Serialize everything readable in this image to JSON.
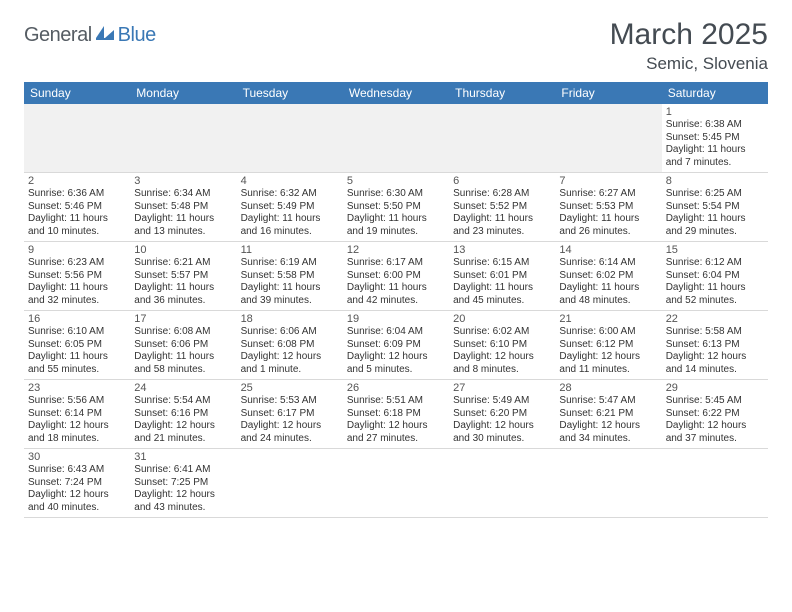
{
  "brand": {
    "text1": "General",
    "text2": "Blue"
  },
  "title": "March 2025",
  "location": "Semic, Slovenia",
  "colors": {
    "header_bg": "#3a78b5",
    "header_fg": "#ffffff",
    "row_border": "#3a78b5",
    "text_primary": "#444b52",
    "text_body": "#333333",
    "spacer_bg": "#f1f1f1"
  },
  "day_headers": [
    "Sunday",
    "Monday",
    "Tuesday",
    "Wednesday",
    "Thursday",
    "Friday",
    "Saturday"
  ],
  "weeks": [
    [
      null,
      null,
      null,
      null,
      null,
      null,
      {
        "n": "1",
        "sr": "Sunrise: 6:38 AM",
        "ss": "Sunset: 5:45 PM",
        "dl1": "Daylight: 11 hours",
        "dl2": "and 7 minutes."
      }
    ],
    [
      {
        "n": "2",
        "sr": "Sunrise: 6:36 AM",
        "ss": "Sunset: 5:46 PM",
        "dl1": "Daylight: 11 hours",
        "dl2": "and 10 minutes."
      },
      {
        "n": "3",
        "sr": "Sunrise: 6:34 AM",
        "ss": "Sunset: 5:48 PM",
        "dl1": "Daylight: 11 hours",
        "dl2": "and 13 minutes."
      },
      {
        "n": "4",
        "sr": "Sunrise: 6:32 AM",
        "ss": "Sunset: 5:49 PM",
        "dl1": "Daylight: 11 hours",
        "dl2": "and 16 minutes."
      },
      {
        "n": "5",
        "sr": "Sunrise: 6:30 AM",
        "ss": "Sunset: 5:50 PM",
        "dl1": "Daylight: 11 hours",
        "dl2": "and 19 minutes."
      },
      {
        "n": "6",
        "sr": "Sunrise: 6:28 AM",
        "ss": "Sunset: 5:52 PM",
        "dl1": "Daylight: 11 hours",
        "dl2": "and 23 minutes."
      },
      {
        "n": "7",
        "sr": "Sunrise: 6:27 AM",
        "ss": "Sunset: 5:53 PM",
        "dl1": "Daylight: 11 hours",
        "dl2": "and 26 minutes."
      },
      {
        "n": "8",
        "sr": "Sunrise: 6:25 AM",
        "ss": "Sunset: 5:54 PM",
        "dl1": "Daylight: 11 hours",
        "dl2": "and 29 minutes."
      }
    ],
    [
      {
        "n": "9",
        "sr": "Sunrise: 6:23 AM",
        "ss": "Sunset: 5:56 PM",
        "dl1": "Daylight: 11 hours",
        "dl2": "and 32 minutes."
      },
      {
        "n": "10",
        "sr": "Sunrise: 6:21 AM",
        "ss": "Sunset: 5:57 PM",
        "dl1": "Daylight: 11 hours",
        "dl2": "and 36 minutes."
      },
      {
        "n": "11",
        "sr": "Sunrise: 6:19 AM",
        "ss": "Sunset: 5:58 PM",
        "dl1": "Daylight: 11 hours",
        "dl2": "and 39 minutes."
      },
      {
        "n": "12",
        "sr": "Sunrise: 6:17 AM",
        "ss": "Sunset: 6:00 PM",
        "dl1": "Daylight: 11 hours",
        "dl2": "and 42 minutes."
      },
      {
        "n": "13",
        "sr": "Sunrise: 6:15 AM",
        "ss": "Sunset: 6:01 PM",
        "dl1": "Daylight: 11 hours",
        "dl2": "and 45 minutes."
      },
      {
        "n": "14",
        "sr": "Sunrise: 6:14 AM",
        "ss": "Sunset: 6:02 PM",
        "dl1": "Daylight: 11 hours",
        "dl2": "and 48 minutes."
      },
      {
        "n": "15",
        "sr": "Sunrise: 6:12 AM",
        "ss": "Sunset: 6:04 PM",
        "dl1": "Daylight: 11 hours",
        "dl2": "and 52 minutes."
      }
    ],
    [
      {
        "n": "16",
        "sr": "Sunrise: 6:10 AM",
        "ss": "Sunset: 6:05 PM",
        "dl1": "Daylight: 11 hours",
        "dl2": "and 55 minutes."
      },
      {
        "n": "17",
        "sr": "Sunrise: 6:08 AM",
        "ss": "Sunset: 6:06 PM",
        "dl1": "Daylight: 11 hours",
        "dl2": "and 58 minutes."
      },
      {
        "n": "18",
        "sr": "Sunrise: 6:06 AM",
        "ss": "Sunset: 6:08 PM",
        "dl1": "Daylight: 12 hours",
        "dl2": "and 1 minute."
      },
      {
        "n": "19",
        "sr": "Sunrise: 6:04 AM",
        "ss": "Sunset: 6:09 PM",
        "dl1": "Daylight: 12 hours",
        "dl2": "and 5 minutes."
      },
      {
        "n": "20",
        "sr": "Sunrise: 6:02 AM",
        "ss": "Sunset: 6:10 PM",
        "dl1": "Daylight: 12 hours",
        "dl2": "and 8 minutes."
      },
      {
        "n": "21",
        "sr": "Sunrise: 6:00 AM",
        "ss": "Sunset: 6:12 PM",
        "dl1": "Daylight: 12 hours",
        "dl2": "and 11 minutes."
      },
      {
        "n": "22",
        "sr": "Sunrise: 5:58 AM",
        "ss": "Sunset: 6:13 PM",
        "dl1": "Daylight: 12 hours",
        "dl2": "and 14 minutes."
      }
    ],
    [
      {
        "n": "23",
        "sr": "Sunrise: 5:56 AM",
        "ss": "Sunset: 6:14 PM",
        "dl1": "Daylight: 12 hours",
        "dl2": "and 18 minutes."
      },
      {
        "n": "24",
        "sr": "Sunrise: 5:54 AM",
        "ss": "Sunset: 6:16 PM",
        "dl1": "Daylight: 12 hours",
        "dl2": "and 21 minutes."
      },
      {
        "n": "25",
        "sr": "Sunrise: 5:53 AM",
        "ss": "Sunset: 6:17 PM",
        "dl1": "Daylight: 12 hours",
        "dl2": "and 24 minutes."
      },
      {
        "n": "26",
        "sr": "Sunrise: 5:51 AM",
        "ss": "Sunset: 6:18 PM",
        "dl1": "Daylight: 12 hours",
        "dl2": "and 27 minutes."
      },
      {
        "n": "27",
        "sr": "Sunrise: 5:49 AM",
        "ss": "Sunset: 6:20 PM",
        "dl1": "Daylight: 12 hours",
        "dl2": "and 30 minutes."
      },
      {
        "n": "28",
        "sr": "Sunrise: 5:47 AM",
        "ss": "Sunset: 6:21 PM",
        "dl1": "Daylight: 12 hours",
        "dl2": "and 34 minutes."
      },
      {
        "n": "29",
        "sr": "Sunrise: 5:45 AM",
        "ss": "Sunset: 6:22 PM",
        "dl1": "Daylight: 12 hours",
        "dl2": "and 37 minutes."
      }
    ],
    [
      {
        "n": "30",
        "sr": "Sunrise: 6:43 AM",
        "ss": "Sunset: 7:24 PM",
        "dl1": "Daylight: 12 hours",
        "dl2": "and 40 minutes."
      },
      {
        "n": "31",
        "sr": "Sunrise: 6:41 AM",
        "ss": "Sunset: 7:25 PM",
        "dl1": "Daylight: 12 hours",
        "dl2": "and 43 minutes."
      },
      null,
      null,
      null,
      null,
      null
    ]
  ]
}
